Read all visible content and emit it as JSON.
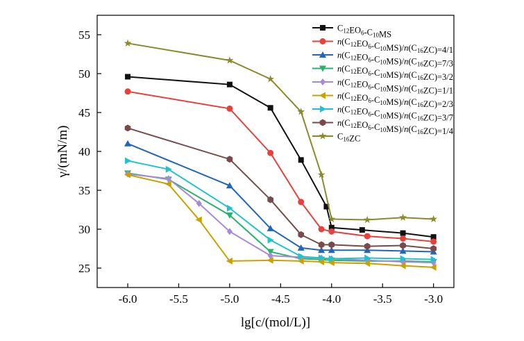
{
  "chart_data": {
    "type": "line",
    "xlabel": "lg[c/(mol/L)]",
    "ylabel": "γ/(mN/m)",
    "xlim": [
      -6.3,
      -2.8
    ],
    "ylim": [
      22.5,
      57.5
    ],
    "xticks": [
      "-6.0",
      "-5.5",
      "-5.0",
      "-4.5",
      "-4.0",
      "-3.5",
      "-3.0"
    ],
    "xtick_values": [
      -6.0,
      -5.5,
      -5.0,
      -4.5,
      -4.0,
      -3.5,
      -3.0
    ],
    "yticks": [
      "25",
      "30",
      "35",
      "40",
      "45",
      "50",
      "55"
    ],
    "ytick_values": [
      25,
      30,
      35,
      40,
      45,
      50,
      55
    ],
    "grid": false,
    "legend_position": "top-right",
    "series": [
      {
        "name": "C12EO6-C10MS",
        "label_parts": [
          [
            "C",
            ""
          ],
          [
            "12",
            "sub"
          ],
          [
            "EO",
            ""
          ],
          [
            "6",
            "sub"
          ],
          [
            "-C",
            ""
          ],
          [
            "10",
            "sub"
          ],
          [
            "MS",
            ""
          ]
        ],
        "color": "#111111",
        "marker": "square",
        "points": [
          [
            -6.0,
            49.6
          ],
          [
            -5.0,
            48.6
          ],
          [
            -4.6,
            45.6
          ],
          [
            -4.3,
            38.9
          ],
          [
            -4.05,
            32.9
          ],
          [
            -4.0,
            30.2
          ],
          [
            -3.7,
            29.9
          ],
          [
            -3.3,
            29.5
          ],
          [
            -3.0,
            29.0
          ]
        ]
      },
      {
        "name": "n(C12EO6-C10MS)/n(C16ZC)=4/1",
        "label_parts": [
          [
            "n",
            "it"
          ],
          [
            "(C",
            ""
          ],
          [
            "12",
            "sub"
          ],
          [
            "EO",
            ""
          ],
          [
            "6",
            "sub"
          ],
          [
            "-C",
            ""
          ],
          [
            "10",
            "sub"
          ],
          [
            "MS)/",
            ""
          ],
          [
            "n",
            "it"
          ],
          [
            "(C",
            ""
          ],
          [
            "16",
            "sub"
          ],
          [
            "ZC)=4/1",
            ""
          ]
        ],
        "color": "#e8413c",
        "marker": "circle",
        "points": [
          [
            -6.0,
            47.7
          ],
          [
            -5.0,
            45.5
          ],
          [
            -4.6,
            39.8
          ],
          [
            -4.3,
            33.5
          ],
          [
            -4.1,
            30.0
          ],
          [
            -4.0,
            29.7
          ],
          [
            -3.65,
            29.1
          ],
          [
            -3.3,
            28.8
          ],
          [
            -3.0,
            28.4
          ]
        ]
      },
      {
        "name": "n(C12EO6-C10MS)/n(C16ZC)=7/3",
        "label_parts": [
          [
            "n",
            "it"
          ],
          [
            "(C",
            ""
          ],
          [
            "12",
            "sub"
          ],
          [
            "EO",
            ""
          ],
          [
            "6",
            "sub"
          ],
          [
            "-C",
            ""
          ],
          [
            "10",
            "sub"
          ],
          [
            "MS)/",
            ""
          ],
          [
            "n",
            "it"
          ],
          [
            "(C",
            ""
          ],
          [
            "16",
            "sub"
          ],
          [
            "ZC)=7/3",
            ""
          ]
        ],
        "color": "#2266bb",
        "marker": "triangle-up",
        "points": [
          [
            -6.0,
            41.0
          ],
          [
            -5.0,
            35.6
          ],
          [
            -4.6,
            30.1
          ],
          [
            -4.3,
            27.6
          ],
          [
            -4.1,
            27.3
          ],
          [
            -4.0,
            27.3
          ],
          [
            -3.65,
            27.3
          ],
          [
            -3.3,
            27.2
          ],
          [
            -3.0,
            27.1
          ]
        ]
      },
      {
        "name": "n(C12EO6-C10MS)/n(C16ZC)=3/2",
        "label_parts": [
          [
            "n",
            "it"
          ],
          [
            "(C",
            ""
          ],
          [
            "12",
            "sub"
          ],
          [
            "EO",
            ""
          ],
          [
            "6",
            "sub"
          ],
          [
            "-C",
            ""
          ],
          [
            "10",
            "sub"
          ],
          [
            "MS)/",
            ""
          ],
          [
            "n",
            "it"
          ],
          [
            "(C",
            ""
          ],
          [
            "16",
            "sub"
          ],
          [
            "ZC)=3/2",
            ""
          ]
        ],
        "color": "#27b36b",
        "marker": "triangle-down",
        "points": [
          [
            -6.0,
            37.2
          ],
          [
            -5.6,
            36.4
          ],
          [
            -5.0,
            31.8
          ],
          [
            -4.6,
            27.1
          ],
          [
            -4.3,
            26.2
          ],
          [
            -4.1,
            26.1
          ],
          [
            -4.0,
            26.0
          ],
          [
            -3.65,
            25.9
          ],
          [
            -3.3,
            25.9
          ],
          [
            -3.0,
            25.8
          ]
        ]
      },
      {
        "name": "n(C12EO6-C10MS)/n(C16ZC)=1/1",
        "label_parts": [
          [
            "n",
            "it"
          ],
          [
            "(C",
            ""
          ],
          [
            "12",
            "sub"
          ],
          [
            "EO",
            ""
          ],
          [
            "6",
            "sub"
          ],
          [
            "-C",
            ""
          ],
          [
            "10",
            "sub"
          ],
          [
            "MS)/",
            ""
          ],
          [
            "n",
            "it"
          ],
          [
            "(C",
            ""
          ],
          [
            "16",
            "sub"
          ],
          [
            "ZC)=1/1",
            ""
          ]
        ],
        "color": "#a889d6",
        "marker": "diamond",
        "points": [
          [
            -6.0,
            37.1
          ],
          [
            -5.6,
            36.5
          ],
          [
            -5.3,
            33.3
          ],
          [
            -5.0,
            29.7
          ],
          [
            -4.6,
            26.6
          ],
          [
            -4.3,
            26.4
          ],
          [
            -4.1,
            26.3
          ],
          [
            -4.0,
            26.2
          ],
          [
            -3.65,
            26.0
          ],
          [
            -3.3,
            25.8
          ],
          [
            -3.0,
            25.7
          ]
        ]
      },
      {
        "name": "n(C12EO6-C10MS)/n(C16ZC)=2/3",
        "label_parts": [
          [
            "n",
            "it"
          ],
          [
            "(C",
            ""
          ],
          [
            "12",
            "sub"
          ],
          [
            "EO",
            ""
          ],
          [
            "6",
            "sub"
          ],
          [
            "-C",
            ""
          ],
          [
            "10",
            "sub"
          ],
          [
            "MS)/",
            ""
          ],
          [
            "n",
            "it"
          ],
          [
            "(C",
            ""
          ],
          [
            "16",
            "sub"
          ],
          [
            "ZC)=2/3",
            ""
          ]
        ],
        "color": "#c9a100",
        "marker": "triangle-left",
        "points": [
          [
            -6.0,
            37.0
          ],
          [
            -5.6,
            35.8
          ],
          [
            -5.3,
            31.2
          ],
          [
            -5.0,
            25.9
          ],
          [
            -4.6,
            26.0
          ],
          [
            -4.3,
            25.9
          ],
          [
            -4.1,
            25.8
          ],
          [
            -4.0,
            25.7
          ],
          [
            -3.65,
            25.6
          ],
          [
            -3.3,
            25.3
          ],
          [
            -3.0,
            25.1
          ]
        ]
      },
      {
        "name": "n(C12EO6-C10MS)/n(C16ZC)=3/7",
        "label_parts": [
          [
            "n",
            "it"
          ],
          [
            "(C",
            ""
          ],
          [
            "12",
            "sub"
          ],
          [
            "EO",
            ""
          ],
          [
            "6",
            "sub"
          ],
          [
            "-C",
            ""
          ],
          [
            "10",
            "sub"
          ],
          [
            "MS)/",
            ""
          ],
          [
            "n",
            "it"
          ],
          [
            "(C",
            ""
          ],
          [
            "16",
            "sub"
          ],
          [
            "ZC)=3/7",
            ""
          ]
        ],
        "color": "#1ec3cf",
        "marker": "triangle-right",
        "points": [
          [
            -6.0,
            38.8
          ],
          [
            -5.6,
            37.7
          ],
          [
            -5.0,
            32.7
          ],
          [
            -4.6,
            28.6
          ],
          [
            -4.3,
            26.5
          ],
          [
            -4.1,
            26.3
          ],
          [
            -4.0,
            26.2
          ],
          [
            -3.65,
            26.3
          ],
          [
            -3.3,
            26.2
          ],
          [
            -3.0,
            26.1
          ]
        ]
      },
      {
        "name": "n(C12EO6-C10MS)/n(C16ZC)=1/4",
        "label_parts": [
          [
            "n",
            "it"
          ],
          [
            "(C",
            ""
          ],
          [
            "12",
            "sub"
          ],
          [
            "EO",
            ""
          ],
          [
            "6",
            "sub"
          ],
          [
            "-C",
            ""
          ],
          [
            "10",
            "sub"
          ],
          [
            "MS)/",
            ""
          ],
          [
            "n",
            "it"
          ],
          [
            "(C",
            ""
          ],
          [
            "16",
            "sub"
          ],
          [
            "ZC)=1/4",
            ""
          ]
        ],
        "color": "#7a4a4a",
        "marker": "hexagon",
        "points": [
          [
            -6.0,
            43.0
          ],
          [
            -5.0,
            39.0
          ],
          [
            -4.6,
            33.8
          ],
          [
            -4.3,
            29.3
          ],
          [
            -4.1,
            28.0
          ],
          [
            -4.0,
            28.0
          ],
          [
            -3.65,
            27.8
          ],
          [
            -3.3,
            27.9
          ],
          [
            -3.0,
            27.5
          ]
        ]
      },
      {
        "name": "C16ZC",
        "label_parts": [
          [
            "C",
            ""
          ],
          [
            "16",
            "sub"
          ],
          [
            "ZC",
            ""
          ]
        ],
        "color": "#8a8a2a",
        "marker": "star",
        "points": [
          [
            -6.0,
            53.9
          ],
          [
            -5.0,
            51.7
          ],
          [
            -4.6,
            49.3
          ],
          [
            -4.3,
            45.1
          ],
          [
            -4.1,
            37.0
          ],
          [
            -4.0,
            31.3
          ],
          [
            -3.65,
            31.2
          ],
          [
            -3.3,
            31.5
          ],
          [
            -3.0,
            31.3
          ]
        ]
      }
    ]
  }
}
